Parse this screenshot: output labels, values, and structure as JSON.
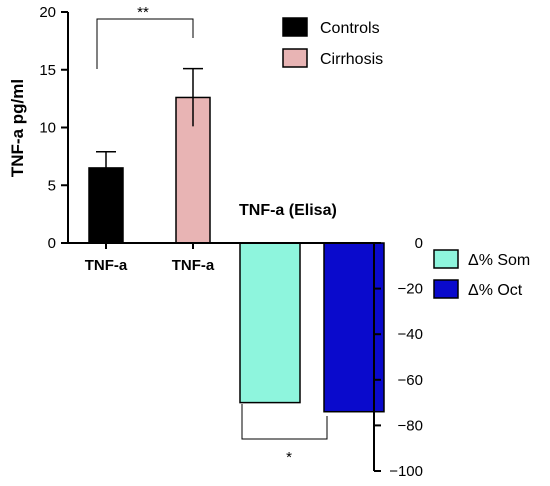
{
  "chart_data": [
    {
      "type": "bar",
      "ylabel": "TNF-a pg/ml",
      "ylim": [
        0,
        20
      ],
      "yticks": [
        "0",
        "5",
        "10",
        "15",
        "20"
      ],
      "categories": [
        "TNF-a",
        "TNF-a"
      ],
      "series": [
        {
          "name": "Controls",
          "value": 6.5,
          "error": 1.4,
          "color": "#000000"
        },
        {
          "name": "Cirrhosis",
          "value": 12.6,
          "error": 2.5,
          "color": "#e8b4b4"
        }
      ],
      "significance": "**",
      "legend_position": "top-right"
    },
    {
      "type": "bar",
      "title": "TNF-a (Elisa)",
      "ylim": [
        -100,
        0
      ],
      "yticks": [
        "0",
        "-20",
        "-40",
        "-60",
        "-80",
        "-100"
      ],
      "series": [
        {
          "name": "Δ% Som",
          "value": -70,
          "color": "#8ef5dd"
        },
        {
          "name": "Δ% Oct",
          "value": -74,
          "color": "#0a0acc"
        }
      ],
      "significance": "*",
      "legend_position": "right"
    }
  ]
}
